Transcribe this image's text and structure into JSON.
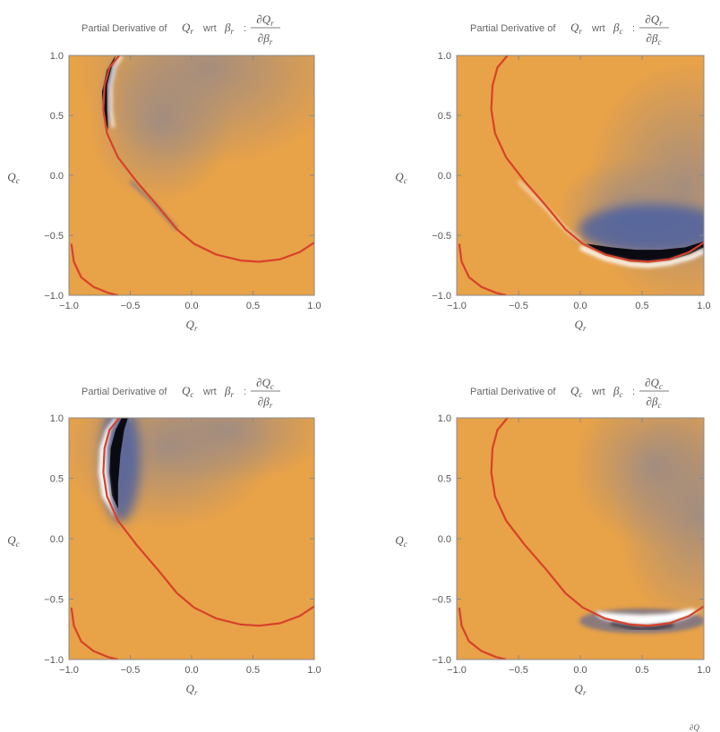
{
  "chart_data": [
    {
      "type": "heatmap",
      "title_prefix": "Partial Derivative of",
      "title_wrt": "wrt",
      "var_num": "Q",
      "var_num_sub": "r",
      "var_den": "β",
      "var_den_sub": "r",
      "frac_num": "∂Q",
      "frac_num_sub": "r",
      "frac_den": "∂β",
      "frac_den_sub": "r",
      "xlabel": "Q",
      "xlabel_sub": "r",
      "ylabel": "Q",
      "ylabel_sub": "c",
      "xlim": [
        -1.0,
        1.0
      ],
      "ylim": [
        -1.0,
        1.0
      ],
      "xticks": [
        "-1.0",
        "-0.5",
        "0.0",
        "0.5",
        "1.0"
      ],
      "yticks": [
        "-1.0",
        "-0.5",
        "0.0",
        "0.5",
        "1.0"
      ],
      "feature": "left-arc"
    },
    {
      "type": "heatmap",
      "title_prefix": "Partial Derivative of",
      "title_wrt": "wrt",
      "var_num": "Q",
      "var_num_sub": "r",
      "var_den": "β",
      "var_den_sub": "c",
      "frac_num": "∂Q",
      "frac_num_sub": "r",
      "frac_den": "∂β",
      "frac_den_sub": "c",
      "xlabel": "Q",
      "xlabel_sub": "r",
      "ylabel": "Q",
      "ylabel_sub": "c",
      "xlim": [
        -1.0,
        1.0
      ],
      "ylim": [
        -1.0,
        1.0
      ],
      "xticks": [
        "-1.0",
        "-0.5",
        "0.0",
        "0.5",
        "1.0"
      ],
      "yticks": [
        "-1.0",
        "-0.5",
        "0.0",
        "0.5",
        "1.0"
      ],
      "feature": "bottom-dark"
    },
    {
      "type": "heatmap",
      "title_prefix": "Partial Derivative of",
      "title_wrt": "wrt",
      "var_num": "Q",
      "var_num_sub": "c",
      "var_den": "β",
      "var_den_sub": "r",
      "frac_num": "∂Q",
      "frac_num_sub": "c",
      "frac_den": "∂β",
      "frac_den_sub": "r",
      "xlabel": "Q",
      "xlabel_sub": "r",
      "ylabel": "Q",
      "ylabel_sub": "c",
      "xlim": [
        -1.0,
        1.0
      ],
      "ylim": [
        -1.0,
        1.0
      ],
      "xticks": [
        "-1.0",
        "-0.5",
        "0.0",
        "0.5",
        "1.0"
      ],
      "yticks": [
        "-1.0",
        "-0.5",
        "0.0",
        "0.5",
        "1.0"
      ],
      "feature": "left-dark"
    },
    {
      "type": "heatmap",
      "title_prefix": "Partial Derivative of",
      "title_wrt": "wrt",
      "var_num": "Q",
      "var_num_sub": "c",
      "var_den": "β",
      "var_den_sub": "c",
      "frac_num": "∂Q",
      "frac_num_sub": "c",
      "frac_den": "∂β",
      "frac_den_sub": "c",
      "xlabel": "Q",
      "xlabel_sub": "r",
      "ylabel": "Q",
      "ylabel_sub": "c",
      "xlim": [
        -1.0,
        1.0
      ],
      "ylim": [
        -1.0,
        1.0
      ],
      "xticks": [
        "-1.0",
        "-0.5",
        "0.0",
        "0.5",
        "1.0"
      ],
      "yticks": [
        "-1.0",
        "-0.5",
        "0.0",
        "0.5",
        "1.0"
      ],
      "feature": "bottom-light"
    }
  ],
  "colors": {
    "base": "#e8a248",
    "haze": "#9a8a86",
    "curve": "#d8412b",
    "dark": "#0a0a12",
    "blue": "#3c5aa8",
    "white": "#ffffff"
  },
  "footer_fragment": "∂Q"
}
